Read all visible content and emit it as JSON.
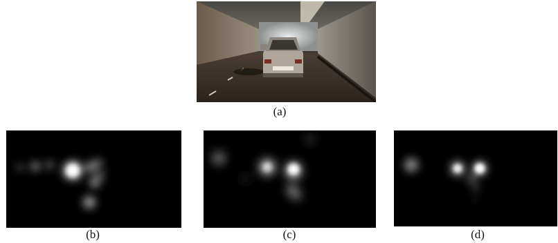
{
  "figure": {
    "photo": {
      "caption": "(a)"
    },
    "maps": [
      {
        "id": "b",
        "caption": "(b)"
      },
      {
        "id": "c",
        "caption": "(c)"
      },
      {
        "id": "d",
        "caption": "(d)"
      }
    ]
  }
}
